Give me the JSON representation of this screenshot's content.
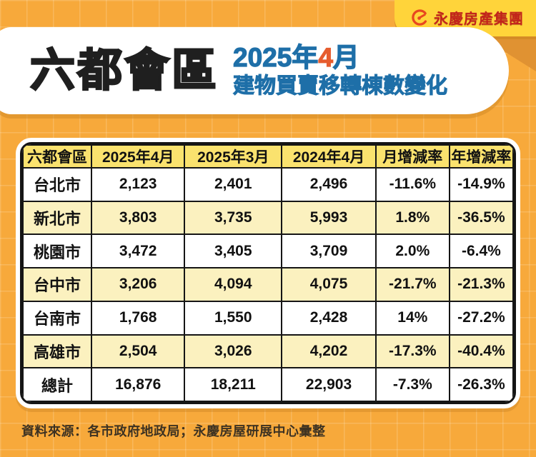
{
  "brand": {
    "logo_text": "永慶房產集團",
    "logo_icon": "yungching-ring-icon"
  },
  "header": {
    "title": "六都會區",
    "subtitle_line1_parts": [
      {
        "text": "2025年",
        "color": "blue"
      },
      {
        "text": "4",
        "color": "orange"
      },
      {
        "text": "月",
        "color": "blue"
      }
    ],
    "subtitle_line2": "建物買賣移轉棟數變化"
  },
  "table": {
    "columns": [
      "六都會區",
      "2025年4月",
      "2025年3月",
      "2024年4月",
      "月增減率",
      "年增減率"
    ],
    "rows": [
      [
        "台北市",
        "2,123",
        "2,401",
        "2,496",
        "-11.6%",
        "-14.9%"
      ],
      [
        "新北市",
        "3,803",
        "3,735",
        "5,993",
        "1.8%",
        "-36.5%"
      ],
      [
        "桃園市",
        "3,472",
        "3,405",
        "3,709",
        "2.0%",
        "-6.4%"
      ],
      [
        "台中市",
        "3,206",
        "4,094",
        "4,075",
        "-21.7%",
        "-21.3%"
      ],
      [
        "台南市",
        "1,768",
        "1,550",
        "2,428",
        "14%",
        "-27.2%"
      ],
      [
        "高雄市",
        "2,504",
        "3,026",
        "4,202",
        "-17.3%",
        "-40.4%"
      ],
      [
        "總計",
        "16,876",
        "18,211",
        "22,903",
        "-7.3%",
        "-26.3%"
      ]
    ],
    "column_widths_pct": [
      14,
      19,
      19.8,
      19.2,
      15,
      13
    ]
  },
  "footer": {
    "source": "資料來源：各市政府地政局；永慶房屋研展中心彙整"
  },
  "colors": {
    "page_background": "#F7A93B",
    "badge_yellow": "#FFD43A",
    "badge_shadow_orange": "#E09232",
    "logo_red": "#C2231B",
    "logo_ring_red": "#E8471F",
    "title_black": "#1F1F1F",
    "subtitle_blue": "#1E6FA8",
    "subtitle_orange": "#E65C2E",
    "table_header_yellow": "#FAE26E",
    "table_alt_row_yellow": "#FBF1BF",
    "table_border_black": "#151515",
    "footer_text": "#3D3222"
  },
  "chart_data": {
    "type": "table",
    "title": "六都會區 2025年4月 建物買賣移轉棟數變化",
    "columns": [
      "六都會區",
      "2025年4月",
      "2025年3月",
      "2024年4月",
      "月增減率",
      "年增減率"
    ],
    "rows": [
      {
        "city": "台北市",
        "apr_2025": 2123,
        "mar_2025": 2401,
        "apr_2024": 2496,
        "mom_change": "-11.6%",
        "yoy_change": "-14.9%"
      },
      {
        "city": "新北市",
        "apr_2025": 3803,
        "mar_2025": 3735,
        "apr_2024": 5993,
        "mom_change": "1.8%",
        "yoy_change": "-36.5%"
      },
      {
        "city": "桃園市",
        "apr_2025": 3472,
        "mar_2025": 3405,
        "apr_2024": 3709,
        "mom_change": "2.0%",
        "yoy_change": "-6.4%"
      },
      {
        "city": "台中市",
        "apr_2025": 3206,
        "mar_2025": 4094,
        "apr_2024": 4075,
        "mom_change": "-21.7%",
        "yoy_change": "-21.3%"
      },
      {
        "city": "台南市",
        "apr_2025": 1768,
        "mar_2025": 1550,
        "apr_2024": 2428,
        "mom_change": "14%",
        "yoy_change": "-27.2%"
      },
      {
        "city": "高雄市",
        "apr_2025": 2504,
        "mar_2025": 3026,
        "apr_2024": 4202,
        "mom_change": "-17.3%",
        "yoy_change": "-40.4%"
      },
      {
        "city": "總計",
        "apr_2025": 16876,
        "mar_2025": 18211,
        "apr_2024": 22903,
        "mom_change": "-7.3%",
        "yoy_change": "-26.3%"
      }
    ],
    "source_note": "資料來源：各市政府地政局；永慶房屋研展中心彙整"
  }
}
